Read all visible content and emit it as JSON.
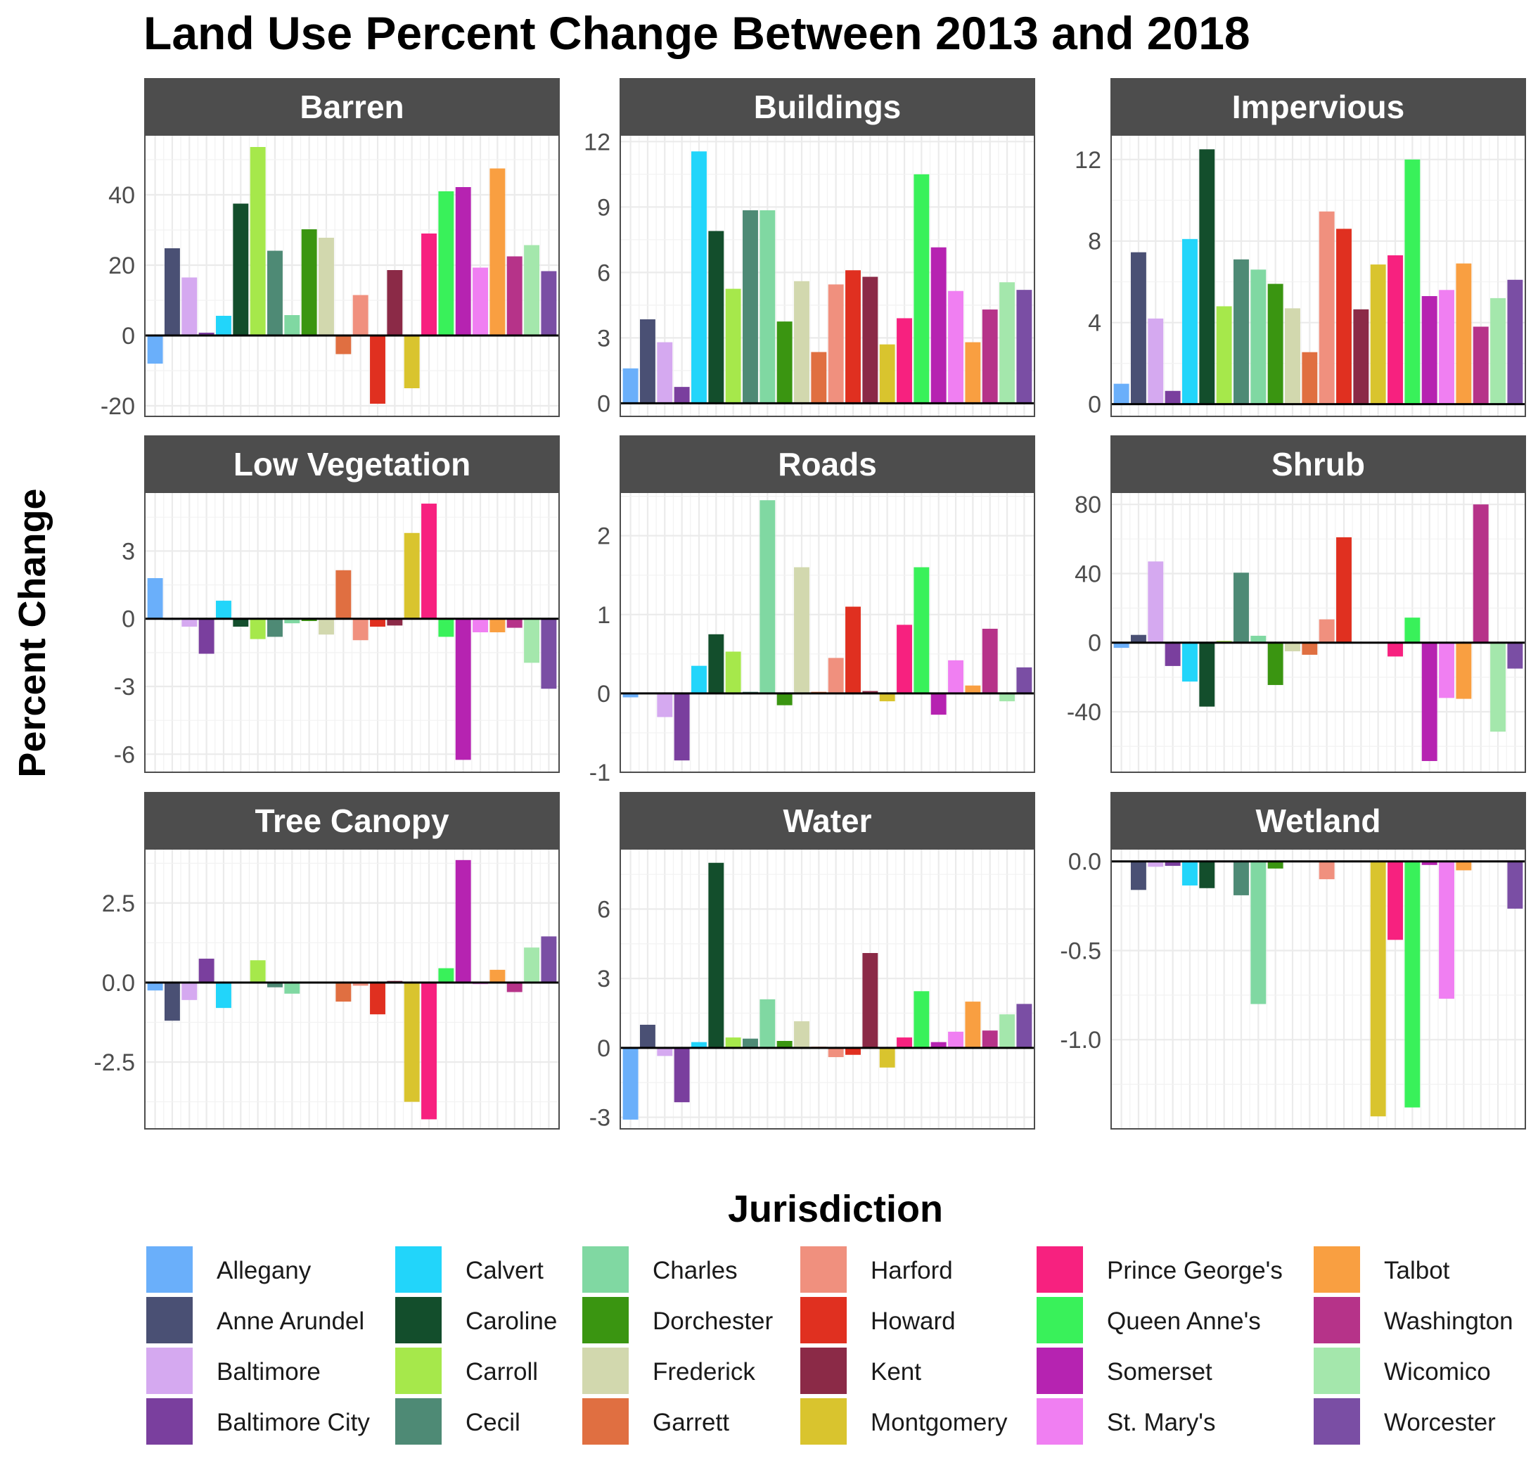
{
  "chart_data": {
    "type": "bar",
    "title": "Land Use Percent Change Between 2013 and 2018",
    "xlabel": "Jurisdiction",
    "ylabel": "Percent Change",
    "legend_position": "bottom",
    "grid": true,
    "categories": [
      "Allegany",
      "Anne Arundel",
      "Baltimore",
      "Baltimore City",
      "Calvert",
      "Caroline",
      "Carroll",
      "Cecil",
      "Charles",
      "Dorchester",
      "Frederick",
      "Garrett",
      "Harford",
      "Howard",
      "Kent",
      "Montgomery",
      "Prince George's",
      "Queen Anne's",
      "Somerset",
      "St. Mary's",
      "Talbot",
      "Washington",
      "Wicomico",
      "Worcester"
    ],
    "colors": [
      "#6aaffa",
      "#4a5074",
      "#d5a9f0",
      "#7a3f9e",
      "#22d5fa",
      "#134e2c",
      "#a6e84b",
      "#4e8a75",
      "#80d8a2",
      "#3a9511",
      "#d2d8ae",
      "#e06f41",
      "#f0907e",
      "#e03020",
      "#8b2a47",
      "#d9c42e",
      "#f7217f",
      "#39f15a",
      "#b623b1",
      "#f07ff2",
      "#f99f41",
      "#b63389",
      "#a4e7ac",
      "#7a4ea4"
    ],
    "panels": [
      {
        "name": "Barren",
        "ylim": [
          -23,
          57
        ],
        "yticks": [
          -20,
          0,
          20,
          40
        ],
        "values": [
          -8,
          24.8,
          16.5,
          0.8,
          5.6,
          37.5,
          53.6,
          24.1,
          5.8,
          30.2,
          27.8,
          -5.3,
          11.5,
          -19.4,
          18.6,
          -15,
          29,
          41,
          42.2,
          19.3,
          47.5,
          22.5,
          25.7,
          18.3
        ]
      },
      {
        "name": "Buildings",
        "ylim": [
          -0.6,
          12.3
        ],
        "yticks": [
          0,
          3,
          6,
          9,
          12
        ],
        "values": [
          1.6,
          3.85,
          2.8,
          0.75,
          11.55,
          7.9,
          5.25,
          8.85,
          8.85,
          3.75,
          5.6,
          2.35,
          5.45,
          6.1,
          5.8,
          2.7,
          3.9,
          10.5,
          7.15,
          5.15,
          2.8,
          4.3,
          5.55,
          5.2
        ]
      },
      {
        "name": "Impervious",
        "ylim": [
          -0.6,
          13.2
        ],
        "yticks": [
          0,
          4,
          8,
          12
        ],
        "values": [
          1.0,
          7.45,
          4.2,
          0.65,
          8.1,
          12.5,
          4.8,
          7.1,
          6.6,
          5.9,
          4.7,
          2.55,
          9.45,
          8.6,
          4.65,
          6.85,
          7.3,
          12.0,
          5.3,
          5.6,
          6.9,
          3.8,
          5.2,
          6.1
        ]
      },
      {
        "name": "Low Vegetation",
        "ylim": [
          -6.8,
          5.6
        ],
        "yticks": [
          -6,
          -3,
          0,
          3
        ],
        "values": [
          1.8,
          -0.05,
          -0.35,
          -1.55,
          0.8,
          -0.35,
          -0.9,
          -0.8,
          -0.2,
          -0.1,
          -0.7,
          2.15,
          -0.95,
          -0.35,
          -0.3,
          3.8,
          5.1,
          -0.8,
          -6.25,
          -0.6,
          -0.6,
          -0.4,
          -1.95,
          -3.1
        ]
      },
      {
        "name": "Roads",
        "ylim": [
          -1,
          2.55
        ],
        "yticks": [
          -1,
          0,
          1,
          2
        ],
        "values": [
          -0.05,
          0,
          -0.3,
          -0.85,
          0.35,
          0.75,
          0.53,
          0.02,
          2.45,
          -0.15,
          1.6,
          0.02,
          0.45,
          1.1,
          0.03,
          -0.1,
          0.87,
          1.6,
          -0.27,
          0.42,
          0.1,
          0.82,
          -0.1,
          0.33
        ]
      },
      {
        "name": "Shrub",
        "ylim": [
          -75,
          87
        ],
        "yticks": [
          -40,
          0,
          40,
          80
        ],
        "values": [
          -3,
          4.5,
          47,
          -13.5,
          -22.5,
          -37,
          1,
          40.5,
          4,
          -24.5,
          -5,
          -7,
          13.5,
          61,
          0,
          0,
          -8,
          14.5,
          -68.5,
          -32,
          -32.5,
          80,
          -51.5,
          -15
        ]
      },
      {
        "name": "Tree Canopy",
        "ylim": [
          -4.6,
          4.2
        ],
        "yticks": [
          -2.5,
          0.0,
          2.5
        ],
        "values": [
          -0.25,
          -1.2,
          -0.55,
          0.75,
          -0.8,
          0,
          0.7,
          -0.15,
          -0.35,
          0,
          0,
          -0.6,
          -0.1,
          -1.0,
          0.05,
          -3.75,
          -4.3,
          0.45,
          3.85,
          -0.05,
          0.4,
          -0.3,
          1.1,
          1.45
        ]
      },
      {
        "name": "Water",
        "ylim": [
          -3.5,
          8.6
        ],
        "yticks": [
          -3,
          0,
          3,
          6
        ],
        "values": [
          -3.1,
          1.0,
          -0.35,
          -2.35,
          0.25,
          8.0,
          0.45,
          0.4,
          2.1,
          0.3,
          1.15,
          0.05,
          -0.4,
          -0.3,
          4.1,
          -0.85,
          0.45,
          2.45,
          0.25,
          0.7,
          2.0,
          0.75,
          1.45,
          1.9
        ]
      },
      {
        "name": "Wetland",
        "ylim": [
          -1.5,
          0.07
        ],
        "yticks": [
          -1.0,
          -0.5,
          0.0
        ],
        "values": [
          0,
          -0.16,
          -0.03,
          -0.025,
          -0.135,
          -0.15,
          0,
          -0.19,
          -0.8,
          -0.04,
          0,
          0,
          -0.1,
          0,
          0,
          -1.43,
          -0.44,
          -1.38,
          -0.02,
          -0.77,
          -0.05,
          0,
          0,
          -0.265
        ]
      }
    ]
  }
}
